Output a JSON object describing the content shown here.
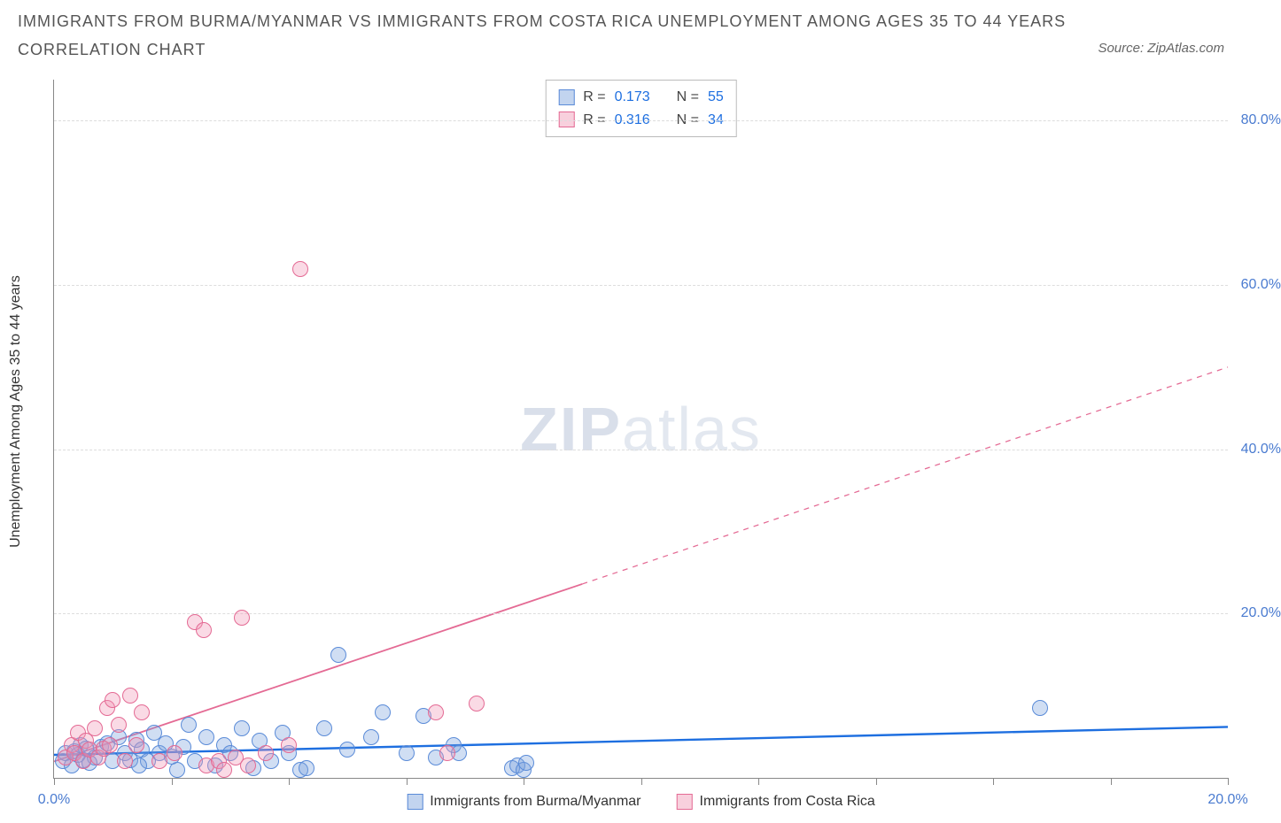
{
  "title_line1": "IMMIGRANTS FROM BURMA/MYANMAR VS IMMIGRANTS FROM COSTA RICA UNEMPLOYMENT AMONG AGES 35 TO 44 YEARS",
  "title_line2": "CORRELATION CHART",
  "source_label": "Source: ZipAtlas.com",
  "y_axis_label": "Unemployment Among Ages 35 to 44 years",
  "watermark_a": "ZIP",
  "watermark_b": "atlas",
  "chart": {
    "type": "scatter",
    "xlim": [
      0,
      20
    ],
    "ylim": [
      0,
      85
    ],
    "xticks": [
      0,
      2,
      4,
      6,
      8,
      10,
      12,
      14,
      16,
      18,
      20
    ],
    "xticklabels": [
      "0.0%",
      "",
      "",
      "",
      "",
      "",
      "",
      "",
      "",
      "",
      "20.0%"
    ],
    "yticks": [
      20,
      40,
      60,
      80
    ],
    "yticklabels": [
      "20.0%",
      "40.0%",
      "60.0%",
      "80.0%"
    ],
    "grid_dash_color": "#dddddd",
    "axis_color": "#888888",
    "tick_label_color": "#4a7bd0",
    "point_radius": 9,
    "point_stroke_width": 1.2,
    "series": [
      {
        "id": "burma",
        "label": "Immigrants from Burma/Myanmar",
        "fill": "rgba(120,160,220,0.35)",
        "stroke": "#5a8bd8",
        "swatch_fill": "rgba(120,160,220,0.45)",
        "swatch_border": "#5a8bd8",
        "R": "0.173",
        "N": "55",
        "trend": {
          "color": "#1e6fe0",
          "width": 2.4,
          "dash_solid_until_x": 20,
          "y_at_x0": 2.8,
          "y_at_x20": 6.2
        },
        "points": [
          [
            0.15,
            2.0
          ],
          [
            0.2,
            3.0
          ],
          [
            0.3,
            1.5
          ],
          [
            0.35,
            3.2
          ],
          [
            0.4,
            2.8
          ],
          [
            0.45,
            4.0
          ],
          [
            0.5,
            2.2
          ],
          [
            0.55,
            3.6
          ],
          [
            0.7,
            2.5
          ],
          [
            0.8,
            3.8
          ],
          [
            0.9,
            4.2
          ],
          [
            1.0,
            2.0
          ],
          [
            1.1,
            5.0
          ],
          [
            1.2,
            3.0
          ],
          [
            1.3,
            2.2
          ],
          [
            1.4,
            4.6
          ],
          [
            1.5,
            3.4
          ],
          [
            1.6,
            2.0
          ],
          [
            1.7,
            5.5
          ],
          [
            1.8,
            3.0
          ],
          [
            1.9,
            4.2
          ],
          [
            2.0,
            2.6
          ],
          [
            2.1,
            1.0
          ],
          [
            2.2,
            3.8
          ],
          [
            2.3,
            6.5
          ],
          [
            2.4,
            2.0
          ],
          [
            2.6,
            5.0
          ],
          [
            2.75,
            1.5
          ],
          [
            2.9,
            4.0
          ],
          [
            3.0,
            3.0
          ],
          [
            3.2,
            6.0
          ],
          [
            3.4,
            1.2
          ],
          [
            3.5,
            4.5
          ],
          [
            3.7,
            2.0
          ],
          [
            3.9,
            5.5
          ],
          [
            4.0,
            3.0
          ],
          [
            4.2,
            1.0
          ],
          [
            4.3,
            1.2
          ],
          [
            4.6,
            6.0
          ],
          [
            4.85,
            15.0
          ],
          [
            5.0,
            3.5
          ],
          [
            5.4,
            5.0
          ],
          [
            5.6,
            8.0
          ],
          [
            6.0,
            3.0
          ],
          [
            6.3,
            7.5
          ],
          [
            6.5,
            2.5
          ],
          [
            6.8,
            4.0
          ],
          [
            6.9,
            3.0
          ],
          [
            7.8,
            1.2
          ],
          [
            7.9,
            1.5
          ],
          [
            8.0,
            1.0
          ],
          [
            8.05,
            1.8
          ],
          [
            16.8,
            8.5
          ],
          [
            0.6,
            1.8
          ],
          [
            1.45,
            1.5
          ]
        ]
      },
      {
        "id": "costarica",
        "label": "Immigrants from Costa Rica",
        "fill": "rgba(240,150,180,0.35)",
        "stroke": "#e46a94",
        "swatch_fill": "rgba(240,150,180,0.45)",
        "swatch_border": "#e46a94",
        "R": "0.316",
        "N": "34",
        "trend": {
          "color": "#e46a94",
          "width": 1.8,
          "dash_solid_until_x": 9,
          "y_at_x0": 2.0,
          "y_at_x20": 50.0
        },
        "points": [
          [
            0.2,
            2.5
          ],
          [
            0.3,
            4.0
          ],
          [
            0.35,
            3.0
          ],
          [
            0.4,
            5.5
          ],
          [
            0.5,
            2.0
          ],
          [
            0.55,
            4.5
          ],
          [
            0.6,
            3.5
          ],
          [
            0.7,
            6.0
          ],
          [
            0.75,
            2.5
          ],
          [
            0.85,
            3.6
          ],
          [
            0.9,
            8.5
          ],
          [
            0.95,
            4.0
          ],
          [
            1.0,
            9.5
          ],
          [
            1.1,
            6.5
          ],
          [
            1.2,
            2.0
          ],
          [
            1.3,
            10.0
          ],
          [
            1.4,
            4.0
          ],
          [
            1.5,
            8.0
          ],
          [
            1.8,
            2.0
          ],
          [
            2.05,
            3.0
          ],
          [
            2.4,
            19.0
          ],
          [
            2.55,
            18.0
          ],
          [
            2.6,
            1.5
          ],
          [
            2.8,
            2.0
          ],
          [
            2.9,
            1.0
          ],
          [
            3.1,
            2.5
          ],
          [
            3.2,
            19.5
          ],
          [
            3.3,
            1.5
          ],
          [
            3.6,
            3.0
          ],
          [
            4.0,
            4.0
          ],
          [
            4.2,
            62.0
          ],
          [
            6.5,
            8.0
          ],
          [
            6.7,
            3.0
          ],
          [
            7.2,
            9.0
          ]
        ]
      }
    ]
  },
  "stats_box": {
    "R_label": "R =",
    "N_label": "N ="
  },
  "legend_bottom": {
    "items": [
      "burma",
      "costarica"
    ]
  }
}
